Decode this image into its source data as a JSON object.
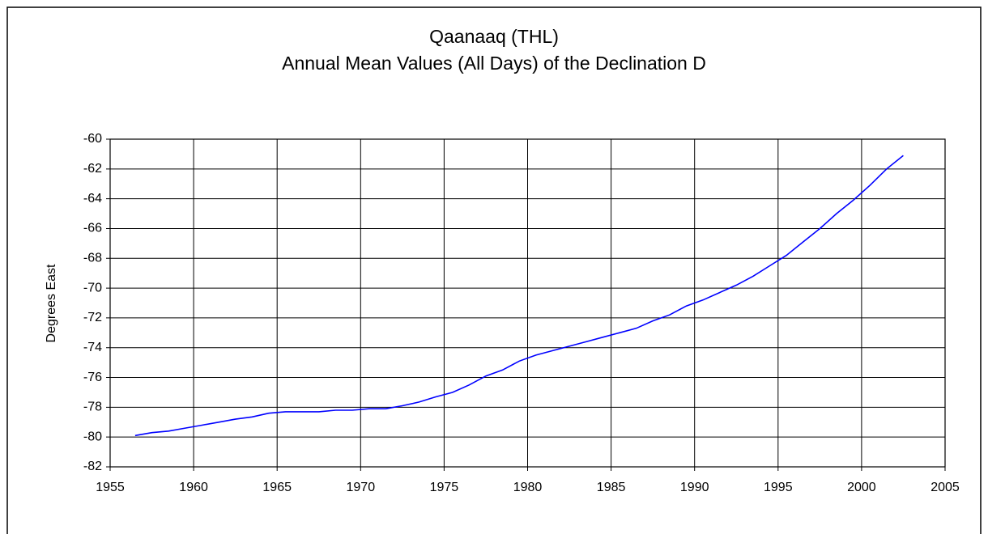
{
  "chart_data": {
    "type": "line",
    "title": "Qaanaaq (THL)",
    "subtitle": "Annual Mean Values (All Days) of the Declination D",
    "y_label": "Degrees East",
    "x": [
      1956.5,
      1957.5,
      1958.5,
      1959.5,
      1960.5,
      1961.5,
      1962.5,
      1963.5,
      1964.5,
      1965.5,
      1966.5,
      1967.5,
      1968.5,
      1969.5,
      1970.5,
      1971.5,
      1972.5,
      1973.5,
      1974.5,
      1975.5,
      1976.5,
      1977.5,
      1978.5,
      1979.5,
      1980.5,
      1981.5,
      1982.5,
      1983.5,
      1984.5,
      1985.5,
      1986.5,
      1987.5,
      1988.5,
      1989.5,
      1990.5,
      1991.5,
      1992.5,
      1993.5,
      1994.5,
      1995.5,
      1996.5,
      1997.5,
      1998.5,
      1999.5,
      2000.5,
      2001.5,
      2002.5
    ],
    "values": [
      -79.9,
      -79.7,
      -79.6,
      -79.4,
      -79.2,
      -79.0,
      -78.8,
      -78.65,
      -78.4,
      -78.3,
      -78.3,
      -78.3,
      -78.2,
      -78.2,
      -78.1,
      -78.1,
      -77.9,
      -77.65,
      -77.3,
      -77.0,
      -76.5,
      -75.9,
      -75.5,
      -74.9,
      -74.5,
      -74.2,
      -73.9,
      -73.6,
      -73.3,
      -73.0,
      -72.7,
      -72.2,
      -71.8,
      -71.2,
      -70.8,
      -70.3,
      -69.8,
      -69.2,
      -68.5,
      -67.8,
      -66.9,
      -66.0,
      -65.0,
      -64.1,
      -63.1,
      -62.0,
      -61.1
    ],
    "color": "#0000ff",
    "xlim": [
      1955,
      2005
    ],
    "xticks": [
      1955,
      1960,
      1965,
      1970,
      1975,
      1980,
      1985,
      1990,
      1995,
      2000,
      2005
    ],
    "ylim": [
      -82,
      -60
    ],
    "yticks": [
      -82,
      -80,
      -78,
      -76,
      -74,
      -72,
      -70,
      -68,
      -66,
      -64,
      -62,
      -60
    ],
    "grid": true
  }
}
